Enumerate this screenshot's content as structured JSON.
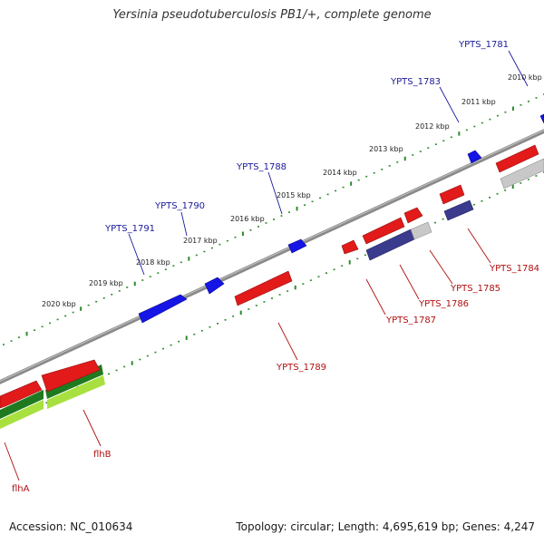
{
  "title": "Yersinia pseudotuberculosis PB1/+, complete genome",
  "footer": {
    "accession": "Accession: NC_010634",
    "summary": "Topology: circular; Length: 4,695,619 bp; Genes: 4,247"
  },
  "colors": {
    "backbone": "#888888",
    "tick": "#2e8b2e",
    "forward_gene": "#1010e0",
    "reverse_gene": "#e01010",
    "reverse_gene_2": "#3a3a88",
    "pseudo_gene": "#c8c8c8",
    "flagellar_dark": "#1f7a1f",
    "flagellar_light": "#a8e040",
    "label_forward": "#1a1a9a",
    "label_reverse": "#b01010"
  },
  "scale_ticks": [
    {
      "label": "2010 kbp"
    },
    {
      "label": "2011 kbp"
    },
    {
      "label": "2012 kbp"
    },
    {
      "label": "2013 kbp"
    },
    {
      "label": "2014 kbp"
    },
    {
      "label": "2015 kbp"
    },
    {
      "label": "2016 kbp"
    },
    {
      "label": "2017 kbp"
    },
    {
      "label": "2018 kbp"
    },
    {
      "label": "2019 kbp"
    },
    {
      "label": "2020 kbp"
    }
  ],
  "gene_labels": [
    {
      "name": "YPTS_1781",
      "strand": "forward"
    },
    {
      "name": "YPTS_1783",
      "strand": "forward"
    },
    {
      "name": "YPTS_1788",
      "strand": "forward"
    },
    {
      "name": "YPTS_1790",
      "strand": "forward"
    },
    {
      "name": "YPTS_1791",
      "strand": "forward"
    },
    {
      "name": "YPTS_1784",
      "strand": "reverse"
    },
    {
      "name": "YPTS_1785",
      "strand": "reverse"
    },
    {
      "name": "YPTS_1786",
      "strand": "reverse"
    },
    {
      "name": "YPTS_1787",
      "strand": "reverse"
    },
    {
      "name": "YPTS_1789",
      "strand": "reverse"
    },
    {
      "name": "flhB",
      "strand": "reverse"
    },
    {
      "name": "flhA",
      "strand": "reverse"
    }
  ]
}
